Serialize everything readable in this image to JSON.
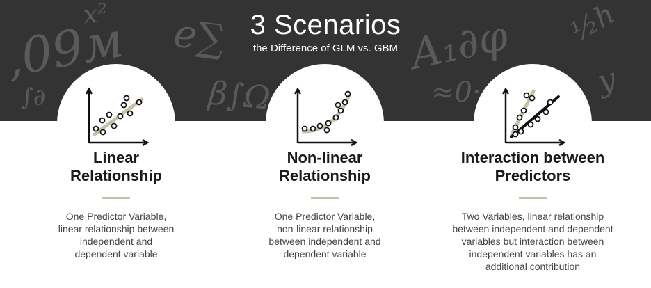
{
  "header": {
    "title": "3 Scenarios",
    "subtitle": "the Difference of GLM vs. GBM"
  },
  "colors": {
    "background_dark": "#333333",
    "accent_line": "#c6c1a5",
    "icon_stroke": "#111111"
  },
  "scenarios": [
    {
      "icon": "linear-scatter-icon",
      "heading_line1": "Linear",
      "heading_line2": "Relationship",
      "desc_line1": "One Predictor Variable,",
      "desc_line2": "linear relationship between",
      "desc_line3": "independent and",
      "desc_line4": "dependent variable"
    },
    {
      "icon": "nonlinear-scatter-icon",
      "heading_line1": "Non-linear",
      "heading_line2": "Relationship",
      "desc_line1": "One Predictor Variable,",
      "desc_line2": "non-linear relationship",
      "desc_line3": "between independent and",
      "desc_line4": "dependent variable"
    },
    {
      "icon": "interaction-scatter-icon",
      "heading_line1": "Interaction between",
      "heading_line2": "Predictors",
      "desc_line1": "Two Variables, linear relationship",
      "desc_line2": "between independent and dependent",
      "desc_line3": "variables but interaction between",
      "desc_line4": "independent variables has an",
      "desc_line5": "additional contribution"
    }
  ]
}
